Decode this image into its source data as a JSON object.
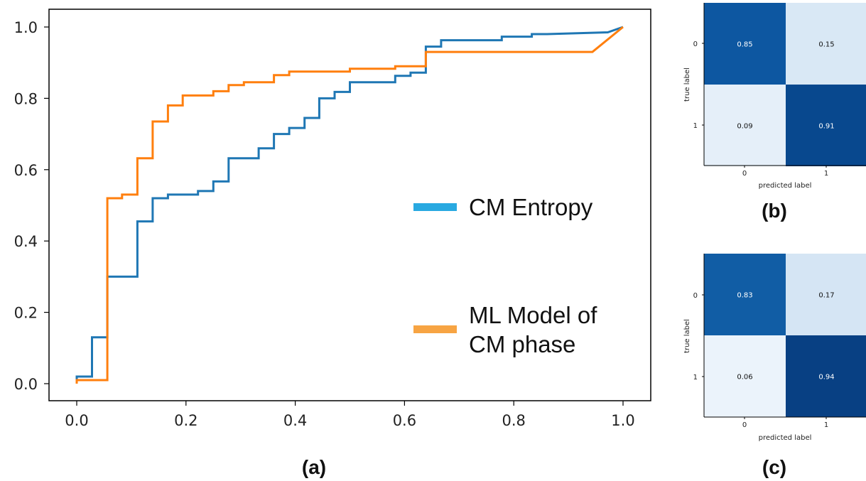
{
  "chart_data": [
    {
      "type": "line",
      "panel_label": "(a)",
      "xlim": [
        0.0,
        1.0
      ],
      "ylim": [
        0.0,
        1.0
      ],
      "x_ticks": [
        "0.0",
        "0.2",
        "0.4",
        "0.6",
        "0.8",
        "1.0"
      ],
      "y_ticks": [
        "0.0",
        "0.2",
        "0.4",
        "0.6",
        "0.8",
        "1.0"
      ],
      "legend_placement": "lower-right",
      "series": [
        {
          "name": "CM Entropy",
          "color": "#1f77b4",
          "legend_color": "#29a9e1",
          "x": [
            0,
            0,
            0.028,
            0.028,
            0.056,
            0.056,
            0.111,
            0.111,
            0.139,
            0.139,
            0.167,
            0.167,
            0.222,
            0.222,
            0.25,
            0.25,
            0.278,
            0.278,
            0.333,
            0.333,
            0.361,
            0.361,
            0.389,
            0.389,
            0.417,
            0.417,
            0.444,
            0.444,
            0.472,
            0.472,
            0.5,
            0.5,
            0.583,
            0.583,
            0.611,
            0.611,
            0.639,
            0.639,
            0.667,
            0.667,
            0.778,
            0.778,
            0.833,
            0.833,
            0.861,
            0.861,
            0.972,
            1.0
          ],
          "y": [
            0,
            0.02,
            0.02,
            0.13,
            0.13,
            0.3,
            0.3,
            0.455,
            0.455,
            0.52,
            0.52,
            0.53,
            0.53,
            0.54,
            0.54,
            0.567,
            0.567,
            0.632,
            0.632,
            0.66,
            0.66,
            0.7,
            0.7,
            0.717,
            0.717,
            0.745,
            0.745,
            0.8,
            0.8,
            0.818,
            0.818,
            0.845,
            0.845,
            0.863,
            0.863,
            0.872,
            0.872,
            0.945,
            0.945,
            0.963,
            0.963,
            0.973,
            0.973,
            0.98,
            0.98,
            0.98,
            0.985,
            1.0
          ]
        },
        {
          "name": "ML Model of CM phase",
          "color": "#ff7f0e",
          "legend_color": "#f7a443",
          "x": [
            0,
            0,
            0.056,
            0.056,
            0.083,
            0.083,
            0.111,
            0.111,
            0.139,
            0.139,
            0.167,
            0.167,
            0.194,
            0.194,
            0.25,
            0.25,
            0.278,
            0.278,
            0.306,
            0.306,
            0.361,
            0.361,
            0.389,
            0.389,
            0.5,
            0.5,
            0.583,
            0.583,
            0.639,
            0.639,
            0.944,
            1.0
          ],
          "y": [
            0,
            0.01,
            0.01,
            0.52,
            0.52,
            0.53,
            0.53,
            0.632,
            0.632,
            0.735,
            0.735,
            0.78,
            0.78,
            0.808,
            0.808,
            0.82,
            0.82,
            0.837,
            0.837,
            0.845,
            0.845,
            0.865,
            0.865,
            0.875,
            0.875,
            0.883,
            0.883,
            0.89,
            0.89,
            0.93,
            0.93,
            1.0
          ]
        }
      ]
    },
    {
      "type": "heatmap",
      "panel_label": "(b)",
      "xlabel": "predicted label",
      "ylabel": "true label",
      "x_ticks": [
        "0",
        "1"
      ],
      "y_ticks": [
        "0",
        "1"
      ],
      "values": [
        [
          0.85,
          0.15
        ],
        [
          0.09,
          0.91
        ]
      ],
      "labels": [
        [
          "0.85",
          "0.15"
        ],
        [
          "0.09",
          "0.91"
        ]
      ]
    },
    {
      "type": "heatmap",
      "panel_label": "(c)",
      "xlabel": "predicted label",
      "ylabel": "true label",
      "x_ticks": [
        "0",
        "1"
      ],
      "y_ticks": [
        "0",
        "1"
      ],
      "values": [
        [
          0.83,
          0.17
        ],
        [
          0.06,
          0.94
        ]
      ],
      "labels": [
        [
          "0.83",
          "0.17"
        ],
        [
          "0.06",
          "0.94"
        ]
      ]
    }
  ]
}
